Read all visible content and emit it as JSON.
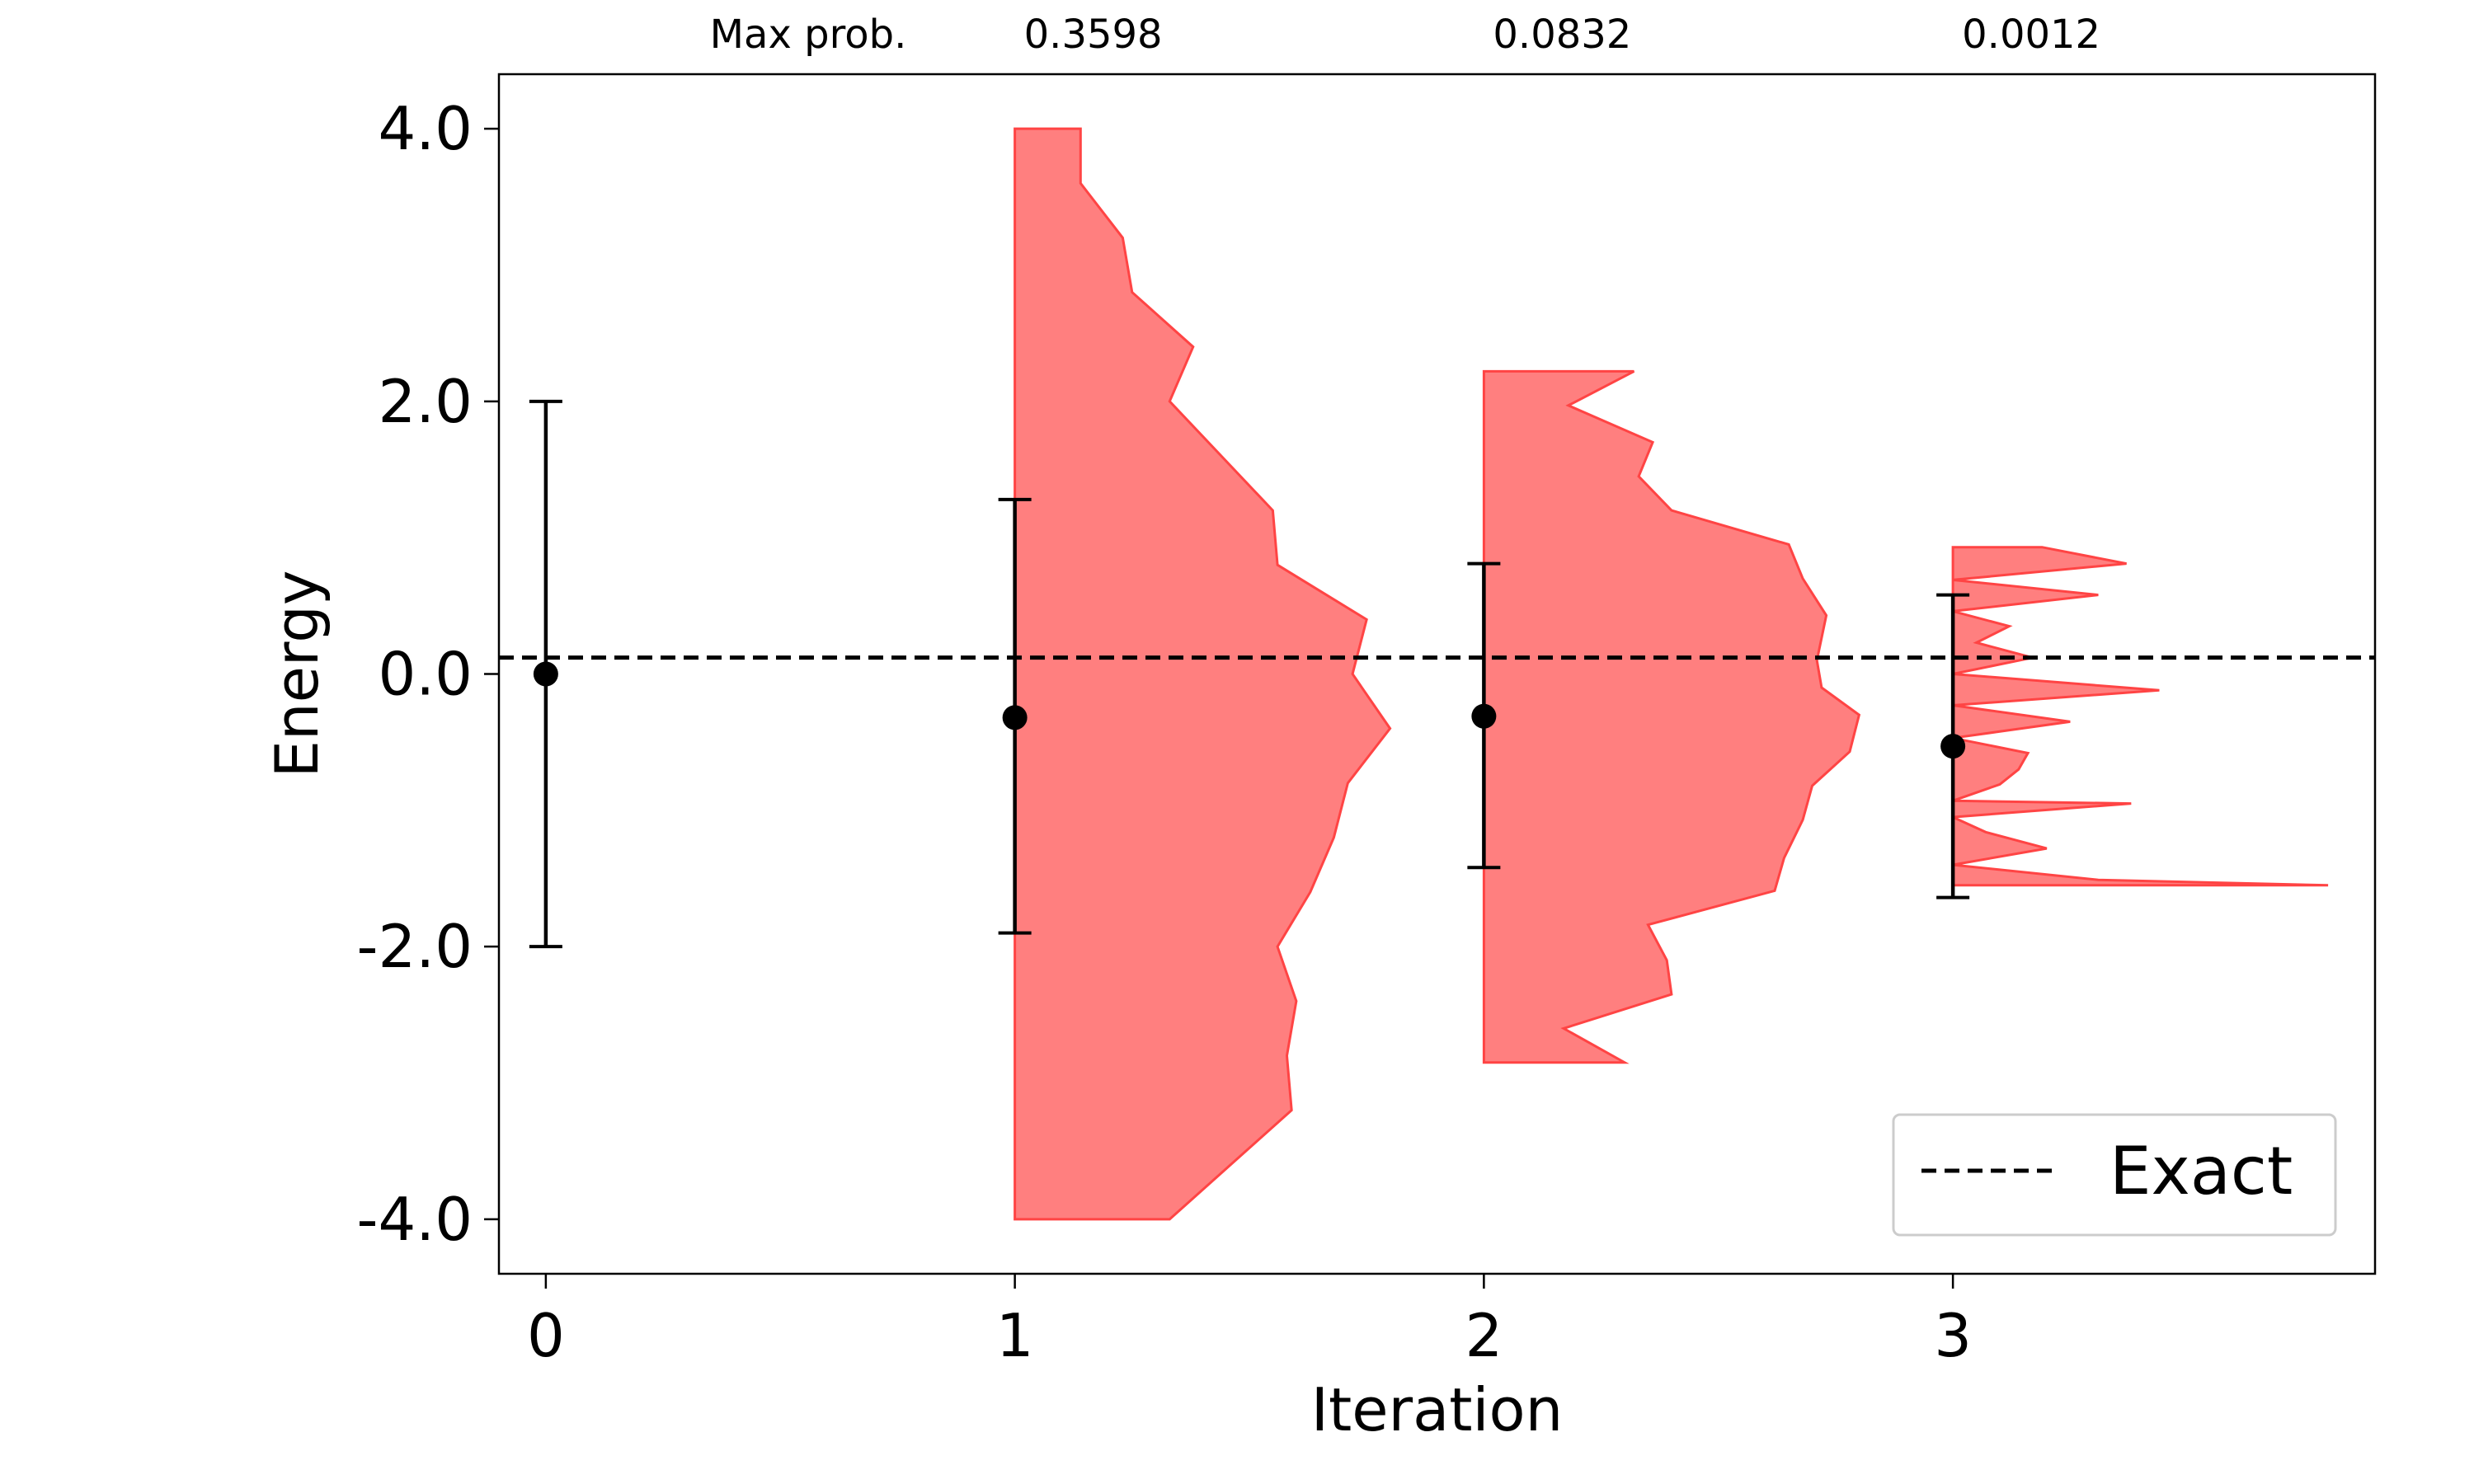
{
  "chart_data": {
    "type": "violin-errorbar",
    "xlabel": "Iteration",
    "ylabel": "Energy",
    "xlim": [
      -0.1,
      3.9
    ],
    "ylim": [
      -4.4,
      4.4
    ],
    "xticks": [
      "0",
      "1",
      "2",
      "3"
    ],
    "yticks": [
      "4.0",
      "2.0",
      "0.0",
      "-2.0",
      "-4.0"
    ],
    "ytick_values": [
      4.0,
      2.0,
      0.0,
      -2.0,
      -4.0
    ],
    "xtick_values": [
      0,
      1,
      2,
      3
    ],
    "max_prob_label": "Max prob.",
    "max_prob": [
      {
        "iteration": 1,
        "label": "0.3598"
      },
      {
        "iteration": 2,
        "label": "0.0832"
      },
      {
        "iteration": 3,
        "label": "0.0012"
      }
    ],
    "exact_energy": 0.12,
    "legend": {
      "label": "Exact",
      "placement": "lower-right"
    },
    "points": [
      {
        "iteration": 0,
        "mean": 0.0,
        "lower": -2.0,
        "upper": 2.0
      },
      {
        "iteration": 1,
        "mean": -0.32,
        "lower": -1.9,
        "upper": 1.28
      },
      {
        "iteration": 2,
        "mean": -0.31,
        "lower": -1.42,
        "upper": 0.81
      },
      {
        "iteration": 3,
        "mean": -0.53,
        "lower": -1.64,
        "upper": 0.58
      }
    ],
    "distributions": [
      {
        "iteration": 1,
        "profile": [
          [
            4.0,
            0.14
          ],
          [
            3.6,
            0.14
          ],
          [
            3.2,
            0.23
          ],
          [
            2.8,
            0.25
          ],
          [
            2.4,
            0.38
          ],
          [
            2.0,
            0.33
          ],
          [
            1.6,
            0.44
          ],
          [
            1.2,
            0.55
          ],
          [
            0.8,
            0.56
          ],
          [
            0.4,
            0.75
          ],
          [
            0.0,
            0.72
          ],
          [
            -0.4,
            0.8
          ],
          [
            -0.8,
            0.71
          ],
          [
            -1.2,
            0.68
          ],
          [
            -1.6,
            0.63
          ],
          [
            -2.0,
            0.56
          ],
          [
            -2.4,
            0.6
          ],
          [
            -2.8,
            0.58
          ],
          [
            -3.2,
            0.59
          ],
          [
            -4.0,
            0.33
          ]
        ]
      },
      {
        "iteration": 2,
        "profile": [
          [
            2.22,
            0.32
          ],
          [
            1.97,
            0.18
          ],
          [
            1.7,
            0.36
          ],
          [
            1.45,
            0.33
          ],
          [
            1.2,
            0.4
          ],
          [
            0.95,
            0.65
          ],
          [
            0.7,
            0.68
          ],
          [
            0.43,
            0.73
          ],
          [
            0.1,
            0.71
          ],
          [
            -0.1,
            0.72
          ],
          [
            -0.3,
            0.8
          ],
          [
            -0.57,
            0.78
          ],
          [
            -0.82,
            0.7
          ],
          [
            -1.07,
            0.68
          ],
          [
            -1.35,
            0.64
          ],
          [
            -1.59,
            0.62
          ],
          [
            -1.84,
            0.35
          ],
          [
            -2.1,
            0.39
          ],
          [
            -2.35,
            0.4
          ],
          [
            -2.6,
            0.17
          ],
          [
            -2.85,
            0.3
          ]
        ]
      },
      {
        "iteration": 3,
        "profile": [
          [
            0.93,
            0.19
          ],
          [
            0.81,
            0.37
          ],
          [
            0.69,
            0.0
          ],
          [
            0.58,
            0.31
          ],
          [
            0.46,
            0.0
          ],
          [
            0.35,
            0.12
          ],
          [
            0.23,
            0.05
          ],
          [
            0.12,
            0.17
          ],
          [
            0.0,
            0.0
          ],
          [
            -0.12,
            0.44
          ],
          [
            -0.23,
            0.0
          ],
          [
            -0.35,
            0.25
          ],
          [
            -0.47,
            0.0
          ],
          [
            -0.58,
            0.16
          ],
          [
            -0.7,
            0.14
          ],
          [
            -0.81,
            0.1
          ],
          [
            -0.93,
            0.0
          ],
          [
            -0.95,
            0.38
          ],
          [
            -1.05,
            0.0
          ],
          [
            -1.16,
            0.07
          ],
          [
            -1.28,
            0.2
          ],
          [
            -1.4,
            0.0
          ],
          [
            -1.51,
            0.31
          ],
          [
            -1.55,
            0.8
          ],
          [
            -1.55,
            0.0
          ]
        ]
      }
    ],
    "colors": {
      "fill": "#ff7f7f",
      "edge": "#ff4444",
      "points": "#000000",
      "exact": "#000000"
    }
  }
}
